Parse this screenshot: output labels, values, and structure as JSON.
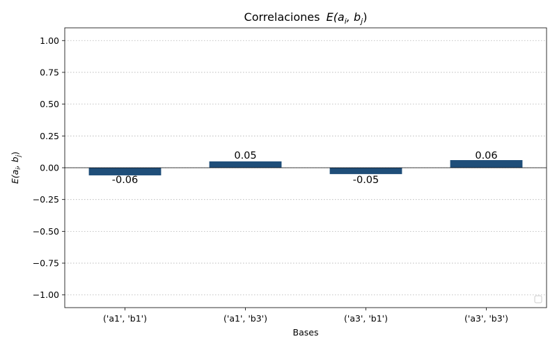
{
  "chart_data": {
    "type": "bar",
    "title": "Correlaciones",
    "title_math": {
      "base": "E(a",
      "sub1": "i",
      "mid": ", b",
      "sub2": "j",
      "end": ")"
    },
    "xlabel": "Bases",
    "ylabel_math": {
      "base": "E(a",
      "sub1": "i",
      "mid": ", b",
      "sub2": "j",
      "end": ")"
    },
    "categories": [
      "('a1', 'b1')",
      "('a1', 'b3')",
      "('a3', 'b1')",
      "('a3', 'b3')"
    ],
    "values": [
      -0.06,
      0.05,
      -0.05,
      0.06
    ],
    "value_labels": [
      "-0.06",
      "0.05",
      "-0.05",
      "0.06"
    ],
    "ylim": [
      -1.1,
      1.1
    ],
    "yticks": [
      1.0,
      0.75,
      0.5,
      0.25,
      0.0,
      -0.25,
      -0.5,
      -0.75,
      -1.0
    ],
    "ytick_labels": [
      "1.00",
      "0.75",
      "0.50",
      "0.25",
      "0.00",
      "−0.25",
      "−0.50",
      "−0.75",
      "−1.00"
    ],
    "grid": "horizontal-dotted",
    "legend": "bottom-right (empty)",
    "bar_color": "#1f4e79",
    "zero_line_color": "#000000",
    "grid_color": "#b0b0b0"
  }
}
